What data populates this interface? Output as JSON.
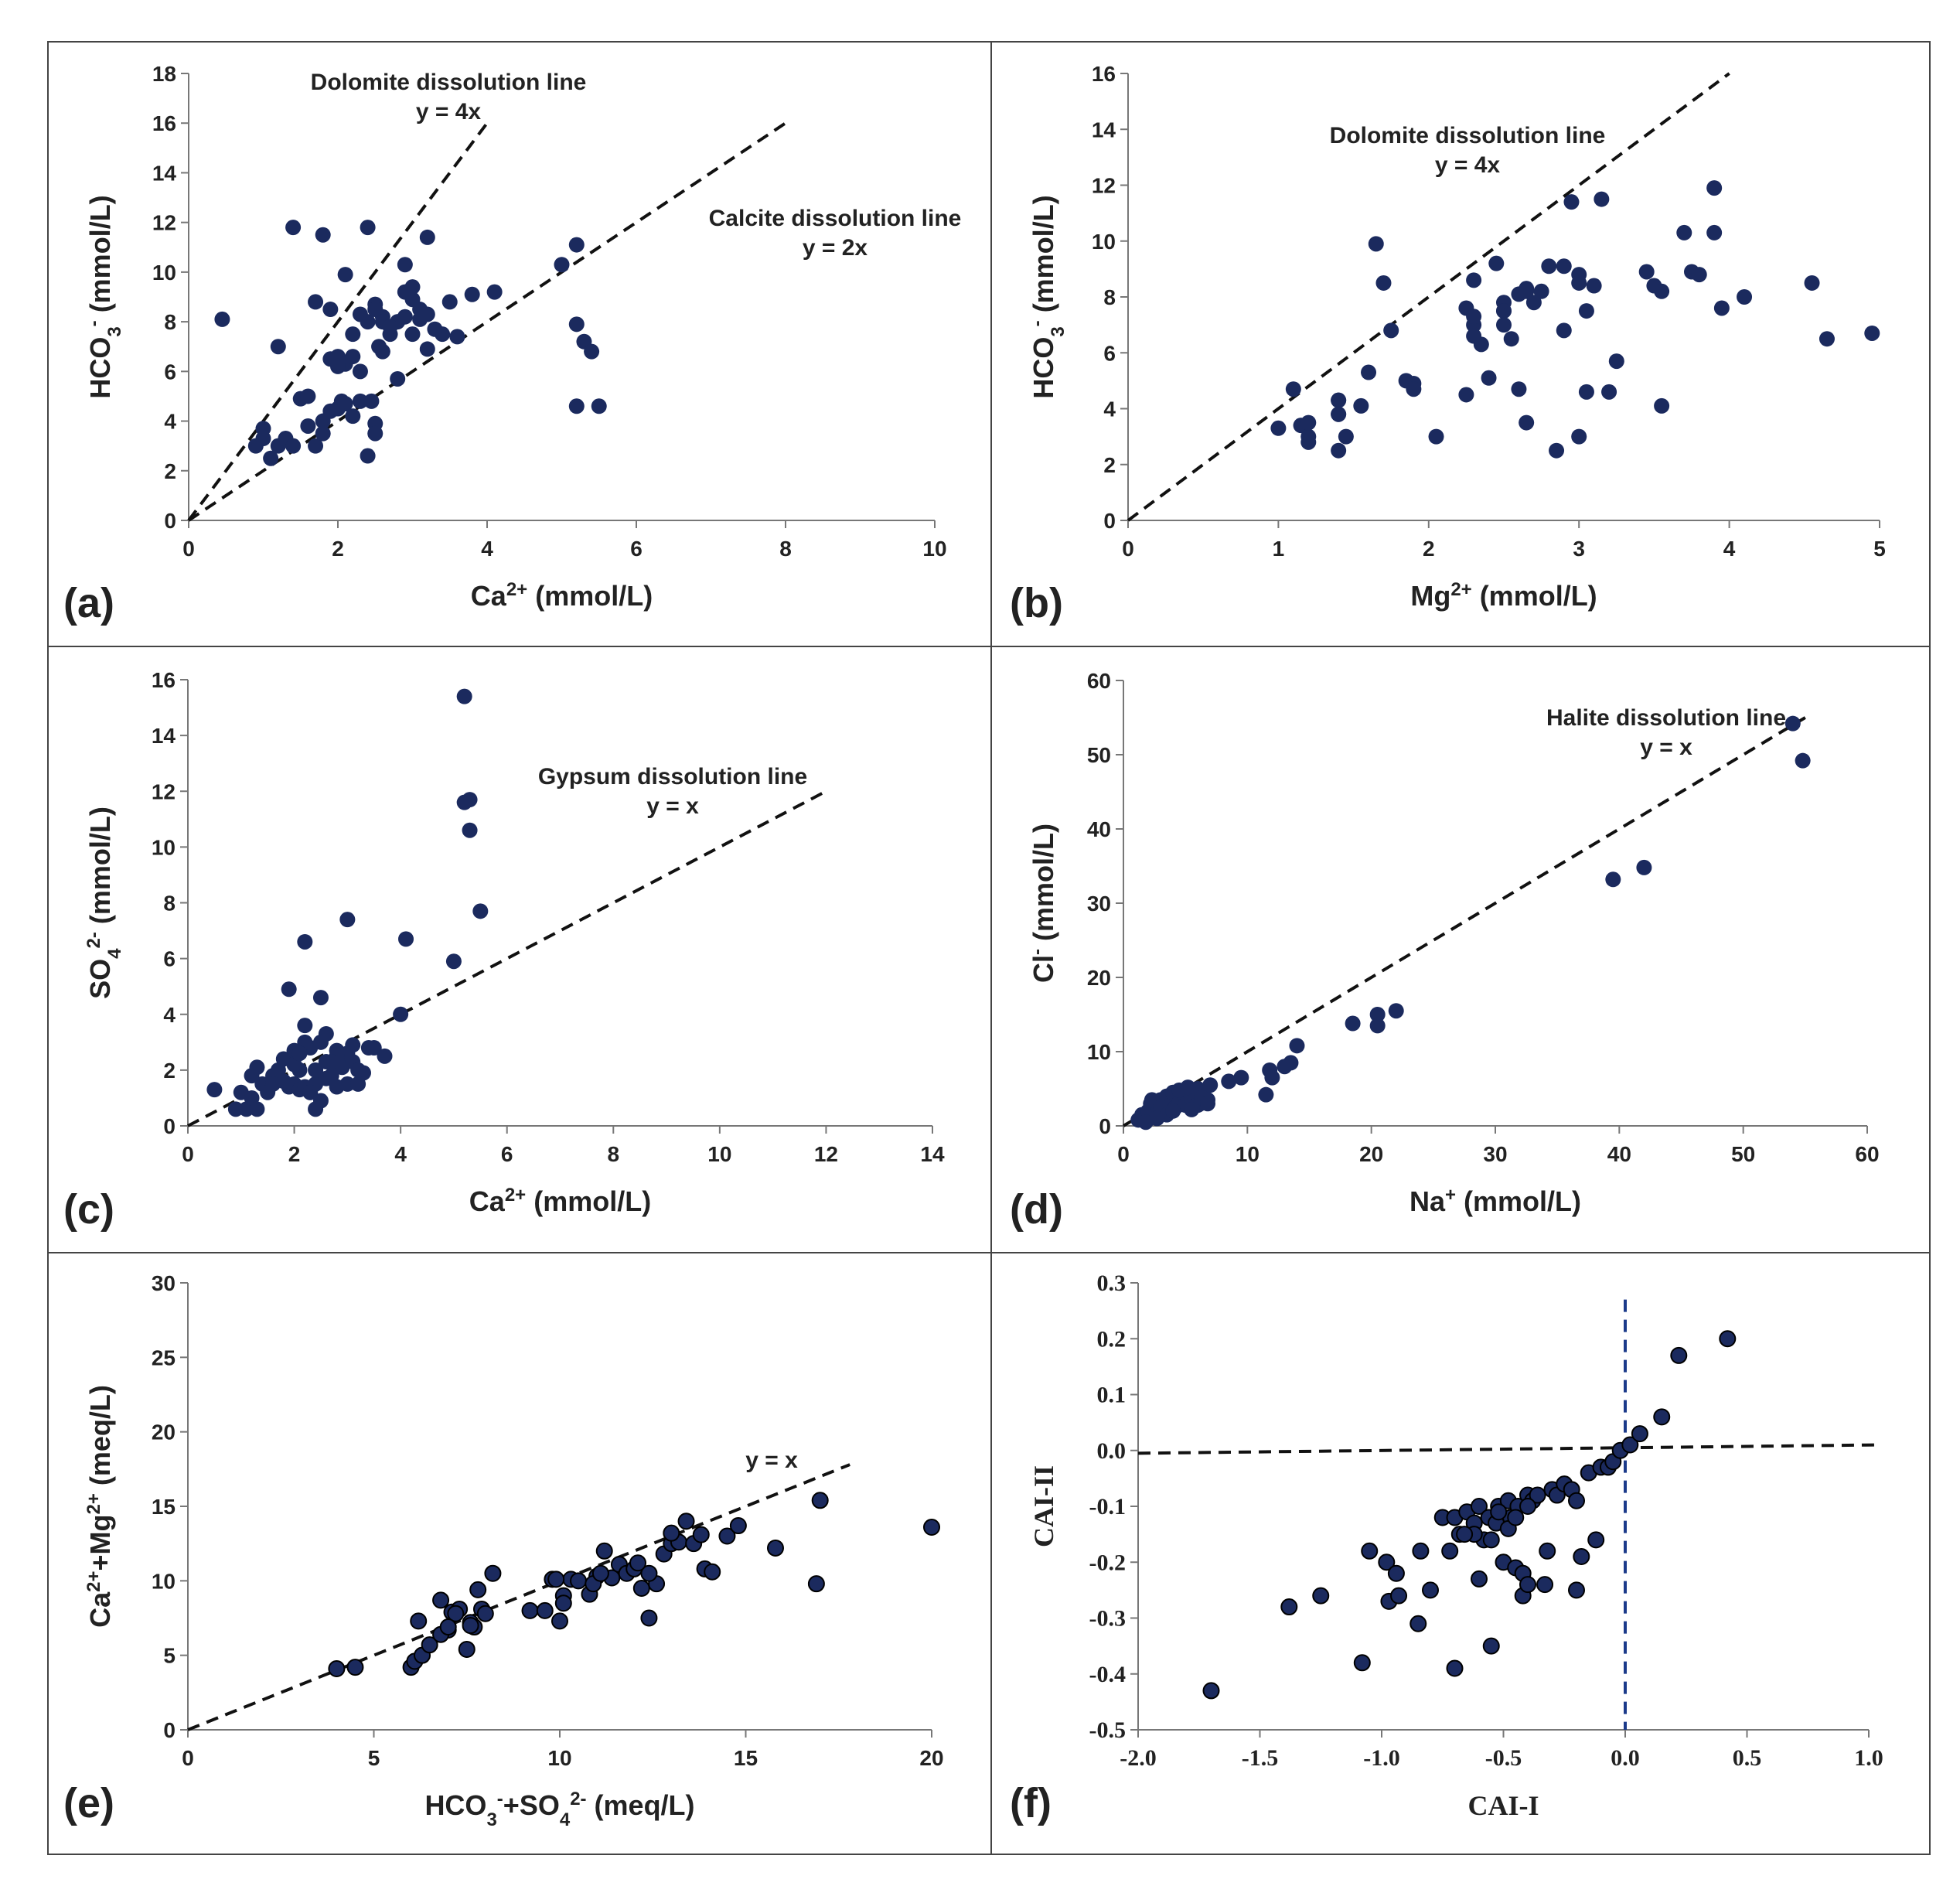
{
  "chart_data": [
    {
      "id": "a",
      "panel_label": "(a)",
      "type": "scatter",
      "xlabel": {
        "main": "Ca",
        "sup": "2+",
        "tail": " (mmol/L)"
      },
      "ylabel": {
        "main": "HCO",
        "sub": "3",
        "sup": "-",
        "tail": " (mmol/L)"
      },
      "xlim": [
        0,
        10
      ],
      "ylim": [
        0,
        18
      ],
      "xticks": [
        0,
        2,
        4,
        6,
        8,
        10
      ],
      "yticks": [
        0,
        2,
        4,
        6,
        8,
        10,
        12,
        14,
        16,
        18
      ],
      "tick_labels_x": [
        "0",
        "2",
        "4",
        "6",
        "8",
        "10"
      ],
      "tick_labels_y": [
        "0",
        "2",
        "4",
        "6",
        "8",
        "10",
        "12",
        "14",
        "16",
        "18"
      ],
      "marker_color": "#1b2a5e",
      "lines": [
        {
          "name": "Dolomite dissolution line",
          "from": [
            0,
            0
          ],
          "to": [
            4,
            16
          ]
        },
        {
          "name": "Calcite dissolution line",
          "from": [
            0,
            0
          ],
          "to": [
            8,
            16
          ]
        }
      ],
      "annotations": [
        {
          "lines": [
            "Dolomite dissolution line",
            "y = 4x"
          ],
          "at": [
            3.8,
            17.5
          ]
        },
        {
          "lines": [
            "Calcite dissolution line",
            "y = 2x"
          ],
          "at": [
            8.7,
            12.2
          ]
        }
      ],
      "x": [
        0.45,
        1.0,
        0.9,
        1.0,
        1.1,
        1.2,
        1.3,
        1.4,
        1.5,
        1.6,
        1.7,
        1.8,
        1.9,
        2.0,
        2.05,
        2.1,
        2.2,
        2.3,
        2.4,
        2.45,
        2.5,
        2.5,
        2.55,
        2.6,
        2.7,
        2.8,
        2.9,
        3.0,
        3.1,
        3.2,
        3.4,
        3.6,
        1.4,
        1.8,
        2.4,
        3.2,
        1.2,
        1.7,
        1.9,
        2.1,
        2.3,
        2.6,
        2.8,
        3.0,
        2.2,
        2.5,
        2.0,
        1.9,
        2.1,
        2.6,
        2.9,
        3.1,
        3.3,
        3.5,
        3.8,
        4.1,
        2.4,
        2.0,
        2.2,
        1.6,
        1.8,
        5.2,
        5.2,
        5.3,
        5.4,
        5.5,
        5.2,
        5.0,
        2.7,
        2.9,
        2.5,
        2.3,
        3.0,
        3.2
      ],
      "y": [
        8.1,
        3.7,
        3.0,
        3.3,
        2.5,
        3.0,
        3.3,
        3.0,
        4.9,
        5.0,
        3.0,
        4.0,
        4.4,
        4.5,
        4.8,
        4.7,
        4.2,
        4.8,
        2.6,
        4.8,
        3.9,
        3.5,
        7.0,
        6.8,
        7.5,
        8.0,
        8.2,
        7.5,
        8.1,
        6.9,
        7.5,
        7.4,
        11.8,
        11.5,
        11.8,
        11.4,
        7.0,
        8.8,
        8.5,
        9.9,
        8.3,
        8.2,
        5.7,
        8.9,
        7.5,
        8.7,
        6.6,
        6.5,
        6.3,
        8.0,
        9.2,
        8.5,
        7.7,
        8.8,
        9.1,
        9.2,
        8.0,
        6.2,
        6.6,
        3.8,
        3.5,
        11.1,
        7.9,
        7.2,
        6.8,
        4.6,
        4.6,
        10.3,
        7.8,
        10.3,
        8.5,
        6.0,
        9.4,
        8.3
      ]
    },
    {
      "id": "b",
      "panel_label": "(b)",
      "type": "scatter",
      "xlabel": {
        "main": "Mg",
        "sup": "2+",
        "tail": " (mmol/L)"
      },
      "ylabel": {
        "main": "HCO",
        "sub": "3",
        "sup": "-",
        "tail": " (mmol/L)"
      },
      "xlim": [
        0,
        5
      ],
      "ylim": [
        0,
        16
      ],
      "xticks": [
        0,
        1,
        2,
        3,
        4,
        5
      ],
      "yticks": [
        0,
        2,
        4,
        6,
        8,
        10,
        12,
        14,
        16
      ],
      "tick_labels_x": [
        "0",
        "1",
        "2",
        "3",
        "4",
        "5"
      ],
      "tick_labels_y": [
        "0",
        "2",
        "4",
        "6",
        "8",
        "10",
        "12",
        "14",
        "16"
      ],
      "marker_color": "#1b2a5e",
      "lines": [
        {
          "name": "Dolomite dissolution line",
          "from": [
            0,
            0
          ],
          "to": [
            4,
            16
          ]
        }
      ],
      "annotations": [
        {
          "lines": [
            "Dolomite dissolution line",
            "y = 4x"
          ],
          "at": [
            2.25,
            13.8
          ]
        }
      ],
      "x": [
        1.0,
        1.1,
        1.15,
        1.2,
        1.2,
        1.4,
        1.4,
        1.4,
        1.45,
        1.55,
        1.6,
        1.65,
        1.7,
        1.75,
        1.85,
        1.9,
        1.9,
        2.05,
        2.25,
        2.25,
        2.3,
        2.3,
        2.35,
        2.4,
        2.45,
        2.5,
        2.5,
        2.55,
        2.6,
        2.6,
        2.65,
        2.7,
        2.75,
        2.8,
        2.85,
        2.9,
        2.9,
        2.95,
        3.0,
        3.0,
        3.05,
        3.1,
        3.15,
        3.2,
        3.25,
        3.45,
        3.5,
        3.55,
        3.55,
        3.7,
        3.75,
        3.8,
        3.9,
        3.9,
        3.95,
        4.1,
        4.55,
        4.65,
        4.95,
        2.3,
        2.5,
        2.65,
        1.4,
        1.4,
        1.2,
        2.3,
        2.5,
        2.65,
        3.05,
        3.0
      ],
      "y": [
        3.3,
        4.7,
        3.4,
        3.0,
        2.8,
        2.5,
        4.3,
        3.8,
        3.0,
        4.1,
        5.3,
        9.9,
        8.5,
        6.8,
        5.0,
        4.9,
        4.7,
        3.0,
        4.5,
        7.6,
        8.6,
        7.0,
        6.3,
        5.1,
        9.2,
        7.8,
        7.5,
        6.5,
        8.1,
        4.7,
        3.5,
        7.8,
        8.2,
        9.1,
        2.5,
        6.8,
        9.1,
        11.4,
        8.8,
        3.0,
        4.6,
        8.4,
        11.5,
        4.6,
        5.7,
        8.9,
        8.4,
        8.2,
        4.1,
        10.3,
        8.9,
        8.8,
        10.3,
        11.9,
        7.6,
        8.0,
        8.5,
        6.5,
        6.7,
        7.3,
        7.5,
        8.3,
        4.3,
        3.8,
        3.5,
        6.6,
        7.0,
        8.2,
        7.5,
        8.5
      ]
    },
    {
      "id": "c",
      "panel_label": "(c)",
      "type": "scatter",
      "xlabel": {
        "main": "Ca",
        "sup": "2+",
        "tail": " (mmol/L)"
      },
      "ylabel": {
        "main": "SO",
        "sub": "4",
        "sup": "2-",
        "tail": " (mmol/L)"
      },
      "xlim": [
        0,
        14
      ],
      "ylim": [
        0,
        16
      ],
      "xticks": [
        0,
        2,
        4,
        6,
        8,
        10,
        12,
        14
      ],
      "yticks": [
        0,
        2,
        4,
        6,
        8,
        10,
        12,
        14,
        16
      ],
      "tick_labels_x": [
        "0",
        "2",
        "4",
        "6",
        "8",
        "10",
        "12",
        "14"
      ],
      "tick_labels_y": [
        "0",
        "2",
        "4",
        "6",
        "8",
        "10",
        "12",
        "14",
        "16"
      ],
      "marker_color": "#1b2a5e",
      "lines": [
        {
          "name": "Gypsum dissolution line",
          "from": [
            0,
            0
          ],
          "to": [
            12,
            12
          ]
        }
      ],
      "annotations": [
        {
          "lines": [
            "Gypsum dissolution line",
            "y = x"
          ],
          "at": [
            9.4,
            12.8
          ]
        }
      ],
      "x": [
        0.5,
        0.9,
        1.0,
        1.1,
        1.2,
        1.2,
        1.3,
        1.4,
        1.5,
        1.6,
        1.7,
        1.8,
        1.9,
        2.0,
        2.0,
        2.1,
        2.1,
        2.2,
        2.2,
        2.3,
        2.3,
        2.4,
        2.4,
        2.5,
        2.5,
        2.6,
        2.6,
        2.7,
        2.8,
        2.8,
        2.9,
        3.0,
        3.0,
        3.1,
        3.2,
        3.3,
        3.4,
        3.5,
        3.7,
        1.9,
        2.2,
        2.5,
        2.2,
        3.0,
        4.0,
        4.1,
        5.0,
        5.2,
        5.2,
        5.3,
        5.3,
        5.5,
        1.3,
        1.6,
        2.0,
        2.6,
        2.3,
        2.1,
        2.8,
        3.1,
        1.8,
        2.4,
        2.7,
        3.2
      ],
      "y": [
        1.3,
        0.6,
        1.2,
        0.6,
        1.8,
        1.0,
        0.6,
        1.5,
        1.2,
        1.8,
        2.0,
        2.4,
        1.4,
        2.7,
        1.5,
        1.3,
        2.0,
        3.6,
        1.4,
        2.8,
        1.2,
        1.5,
        2.0,
        0.9,
        4.6,
        1.7,
        3.3,
        1.8,
        2.7,
        1.4,
        2.1,
        2.6,
        1.5,
        2.9,
        1.5,
        1.9,
        2.8,
        2.8,
        2.5,
        4.9,
        6.6,
        3.0,
        3.0,
        7.4,
        4.0,
        6.7,
        5.9,
        15.4,
        11.6,
        11.7,
        10.6,
        7.7,
        2.1,
        1.5,
        2.2,
        2.3,
        1.2,
        2.6,
        2.5,
        2.3,
        1.6,
        0.6,
        2.3,
        2.0
      ]
    },
    {
      "id": "d",
      "panel_label": "(d)",
      "type": "scatter",
      "xlabel": {
        "main": "Na",
        "sup": "+",
        "tail": " (mmol/L)"
      },
      "ylabel": {
        "main": "Cl",
        "sup": "-",
        "tail": " (mmol/L)"
      },
      "xlim": [
        0,
        60
      ],
      "ylim": [
        0,
        60
      ],
      "xticks": [
        0,
        10,
        20,
        30,
        40,
        50,
        60
      ],
      "yticks": [
        0,
        10,
        20,
        30,
        40,
        50,
        60
      ],
      "tick_labels_x": [
        "0",
        "10",
        "20",
        "30",
        "40",
        "50",
        "60"
      ],
      "tick_labels_y": [
        "0",
        "10",
        "20",
        "30",
        "40",
        "50",
        "60"
      ],
      "marker_color": "#1b2a5e",
      "lines": [
        {
          "name": "Halite dissolution line",
          "from": [
            0,
            0
          ],
          "to": [
            55,
            55
          ]
        }
      ],
      "annotations": [
        {
          "lines": [
            "Halite dissolution line",
            "y = x"
          ],
          "at": [
            42,
            54.5
          ]
        }
      ],
      "x": [
        1.2,
        1.5,
        1.8,
        2.0,
        2.2,
        2.5,
        2.8,
        3.0,
        3.2,
        3.5,
        3.8,
        4.0,
        4.2,
        4.5,
        4.8,
        5.0,
        5.2,
        5.5,
        5.8,
        6.0,
        6.2,
        6.5,
        6.8,
        7.0,
        2.3,
        3.0,
        4.5,
        5.2,
        6.0,
        8.5,
        9.5,
        11.5,
        11.8,
        12.0,
        13.0,
        13.5,
        14.0,
        18.5,
        20.5,
        20.5,
        22.0,
        39.5,
        42.0,
        54.0,
        54.8,
        3.5,
        4.0,
        5.5,
        6.3,
        6.8,
        2.7,
        1.8
      ],
      "y": [
        0.8,
        1.5,
        1.2,
        2.0,
        3.0,
        1.8,
        2.5,
        3.5,
        2.2,
        4.0,
        3.0,
        4.5,
        2.5,
        3.2,
        4.5,
        2.8,
        4.0,
        3.5,
        4.5,
        5.0,
        3.0,
        4.0,
        3.5,
        5.5,
        3.5,
        2.5,
        4.8,
        5.2,
        2.8,
        6.0,
        6.5,
        4.2,
        7.5,
        6.5,
        8.0,
        8.5,
        10.8,
        13.8,
        15.0,
        13.5,
        15.5,
        33.2,
        34.8,
        54.2,
        49.2,
        1.5,
        2.0,
        2.2,
        3.8,
        3.0,
        1.0,
        0.5
      ]
    },
    {
      "id": "e",
      "panel_label": "(e)",
      "type": "scatter",
      "xlabel": {
        "main": "HCO",
        "sub": "3",
        "sup": "-",
        "tail": "+SO",
        "sub2": "4",
        "sup2": "2-",
        "tail2": " (meq/L)"
      },
      "ylabel": {
        "main": "Ca",
        "sup": "2+",
        "tail": "+Mg",
        "sup2": "2+",
        "tail2": " (meq/L)"
      },
      "xlim": [
        0,
        20
      ],
      "ylim": [
        0,
        30
      ],
      "xticks": [
        0,
        5,
        10,
        15,
        20
      ],
      "yticks": [
        0,
        5,
        10,
        15,
        20,
        25,
        30
      ],
      "tick_labels_x": [
        "0",
        "5",
        "10",
        "15",
        "20"
      ],
      "tick_labels_y": [
        "0",
        "5",
        "10",
        "15",
        "20",
        "25",
        "30"
      ],
      "marker_color": "#1b2a5e",
      "lines": [
        {
          "name": "y = x",
          "from": [
            0,
            0
          ],
          "to": [
            17.8,
            17.8
          ]
        }
      ],
      "annotations": [
        {
          "lines": [
            "y = x"
          ],
          "at": [
            15.7,
            18.3
          ]
        }
      ],
      "x": [
        4.0,
        4.5,
        6.0,
        6.1,
        6.2,
        6.3,
        6.5,
        6.8,
        7.0,
        7.1,
        7.3,
        7.5,
        7.6,
        7.7,
        7.8,
        7.9,
        8.0,
        8.2,
        9.2,
        9.6,
        9.8,
        10.0,
        10.1,
        10.3,
        10.5,
        10.8,
        11.0,
        11.2,
        11.4,
        11.6,
        11.8,
        12.0,
        12.2,
        12.4,
        12.6,
        12.8,
        13.0,
        13.2,
        13.4,
        13.6,
        13.9,
        14.1,
        14.5,
        14.8,
        15.8,
        16.9,
        17.0,
        20.0,
        6.8,
        7.2,
        7.6,
        9.9,
        10.9,
        12.4,
        7.0,
        10.1,
        11.1,
        12.1,
        13.0,
        13.8
      ],
      "y": [
        4.1,
        4.2,
        4.2,
        4.6,
        7.3,
        5.0,
        5.7,
        8.7,
        6.7,
        7.9,
        8.1,
        5.4,
        7.2,
        6.9,
        9.4,
        8.1,
        7.8,
        10.5,
        8.0,
        8.0,
        10.1,
        7.3,
        9.0,
        10.1,
        10.0,
        9.1,
        10.3,
        12.0,
        10.2,
        11.1,
        10.5,
        10.8,
        9.5,
        7.5,
        9.8,
        11.8,
        12.5,
        12.6,
        14.0,
        12.5,
        10.8,
        10.6,
        13.0,
        13.7,
        12.2,
        9.8,
        15.4,
        13.6,
        6.4,
        7.8,
        7.0,
        10.1,
        9.8,
        10.5,
        6.9,
        8.5,
        10.5,
        11.2,
        13.2,
        13.1
      ]
    },
    {
      "id": "f",
      "panel_label": "(f)",
      "type": "scatter",
      "xlabel": {
        "main": "CAI-I"
      },
      "ylabel": {
        "main": "CAI-II"
      },
      "xlim": [
        -2.0,
        1.0
      ],
      "ylim": [
        -0.5,
        0.3
      ],
      "xticks": [
        -2.0,
        -1.5,
        -1.0,
        -0.5,
        0.0,
        0.5,
        1.0
      ],
      "yticks": [
        -0.5,
        -0.4,
        -0.3,
        -0.2,
        -0.1,
        0.0,
        0.1,
        0.2,
        0.3
      ],
      "tick_labels_x": [
        "-2.0",
        "-1.5",
        "-1.0",
        "-0.5",
        "0.0",
        "0.5",
        "1.0"
      ],
      "tick_labels_y": [
        "-0.5",
        "-0.4",
        "-0.3",
        "-0.2",
        "-0.1",
        "0.0",
        "0.1",
        "0.2",
        "0.3"
      ],
      "marker_color": "#1b2a5e",
      "ref_lines": [
        {
          "orientation": "horizontal",
          "from": [
            -2.0,
            -0.005
          ],
          "to": [
            1.05,
            0.01
          ],
          "color": "#111111"
        },
        {
          "orientation": "vertical",
          "from": [
            0.0,
            0.27
          ],
          "to": [
            0.0,
            -0.5
          ],
          "color": "#1b3a8a"
        }
      ],
      "x": [
        -1.7,
        -1.38,
        -1.25,
        -1.08,
        -1.05,
        -0.98,
        -0.97,
        -0.94,
        -0.93,
        -0.85,
        -0.84,
        -0.8,
        -0.75,
        -0.72,
        -0.7,
        -0.7,
        -0.68,
        -0.65,
        -0.62,
        -0.6,
        -0.58,
        -0.56,
        -0.55,
        -0.53,
        -0.52,
        -0.5,
        -0.48,
        -0.47,
        -0.45,
        -0.44,
        -0.42,
        -0.4,
        -0.38,
        -0.36,
        -0.33,
        -0.3,
        -0.28,
        -0.25,
        -0.22,
        -0.2,
        -0.18,
        -0.15,
        -0.12,
        -0.1,
        -0.07,
        -0.05,
        -0.02,
        0.02,
        0.06,
        0.15,
        0.22,
        0.42,
        -0.62,
        -0.55,
        -0.48,
        -0.45,
        -0.42,
        -0.32,
        -0.2,
        -0.6,
        -0.66,
        -0.4,
        -0.52,
        -0.4
      ],
      "y": [
        -0.43,
        -0.28,
        -0.26,
        -0.38,
        -0.18,
        -0.2,
        -0.27,
        -0.22,
        -0.26,
        -0.31,
        -0.18,
        -0.25,
        -0.12,
        -0.18,
        -0.39,
        -0.12,
        -0.15,
        -0.11,
        -0.13,
        -0.1,
        -0.16,
        -0.12,
        -0.35,
        -0.13,
        -0.1,
        -0.2,
        -0.09,
        -0.12,
        -0.21,
        -0.1,
        -0.22,
        -0.08,
        -0.09,
        -0.08,
        -0.24,
        -0.07,
        -0.08,
        -0.06,
        -0.07,
        -0.09,
        -0.19,
        -0.04,
        -0.16,
        -0.03,
        -0.03,
        -0.02,
        0.0,
        0.01,
        0.03,
        0.06,
        0.17,
        0.2,
        -0.15,
        -0.16,
        -0.14,
        -0.12,
        -0.26,
        -0.18,
        -0.25,
        -0.23,
        -0.15,
        -0.1,
        -0.11,
        -0.24
      ]
    }
  ]
}
